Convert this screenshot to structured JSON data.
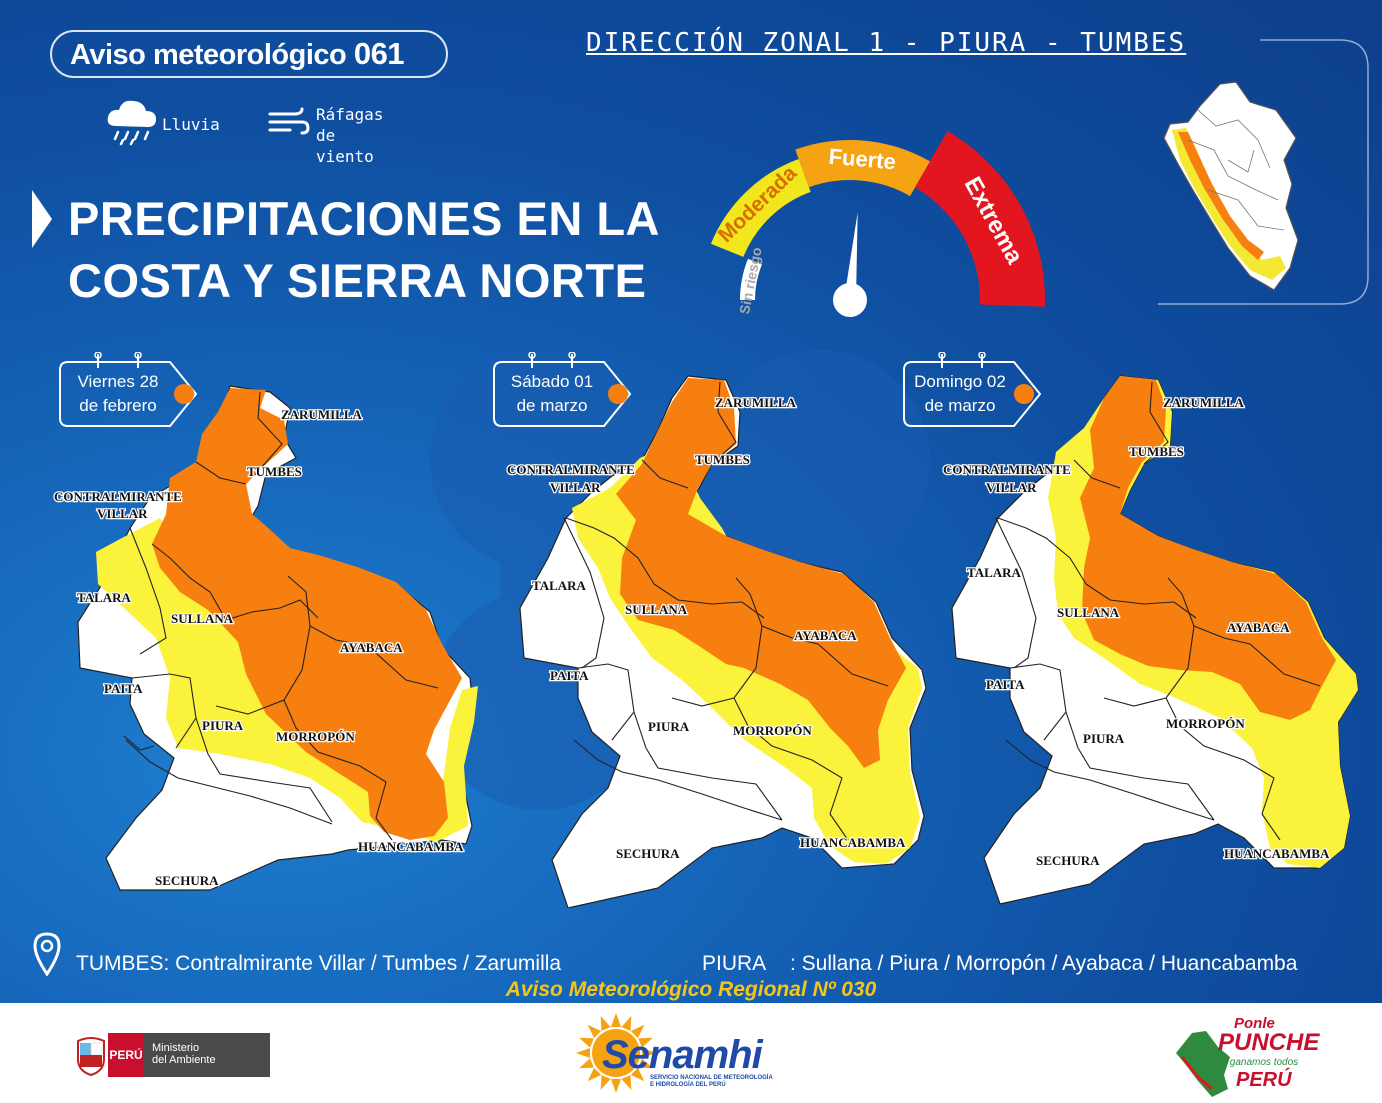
{
  "header": {
    "title": "Aviso meteorológico",
    "number": "061",
    "direction": "DIRECCIÓN ZONAL 1 - PIURA - TUMBES"
  },
  "legend": {
    "rain_label": "Lluvia",
    "wind_line1": "Ráfagas",
    "wind_line2": "de",
    "wind_line3": "viento"
  },
  "headline": {
    "line1": "PRECIPITACIONES EN LA",
    "line2": "COSTA Y SIERRA NORTE"
  },
  "gauge": {
    "levels": [
      "Sin riesgo",
      "Moderada",
      "Fuerte",
      "Extrema"
    ],
    "colors": [
      "#ffffff",
      "#f2e61c",
      "#f6a313",
      "#e3161f"
    ],
    "current_level": "Fuerte"
  },
  "days": [
    {
      "line1": "Viernes 28",
      "line2": "de febrero"
    },
    {
      "line1": "Sábado 01",
      "line2": "de marzo"
    },
    {
      "line1": "Domingo 02",
      "line2": "de marzo"
    }
  ],
  "provinces": {
    "zarumilla": "ZARUMILLA",
    "tumbes": "TUMBES",
    "contralmirante1": "CONTRALMIRANTE",
    "contralmirante2": "VILLAR",
    "talara": "TALARA",
    "sullana": "SULLANA",
    "paita": "PAITA",
    "ayabaca": "AYABACA",
    "piura": "PIURA",
    "morropon": "MORROPÓN",
    "huancabamba": "HUANCABAMBA",
    "sechura": "SECHURA"
  },
  "colors": {
    "alert_orange": "#f77f0f",
    "alert_yellow": "#fbf33b",
    "no_alert": "#ffffff",
    "background": "#1565b9",
    "regional_notice": "#f5c518"
  },
  "footer": {
    "tumbes_list": "TUMBES: Contralmirante Villar / Tumbes / Zarumilla",
    "piura_label": "PIURA",
    "piura_list": ": Sullana / Piura / Morropón / Ayabaca / Huancabamba",
    "regional_notice": "Aviso Meteorológico Regional Nº 030",
    "peru_label": "PERÚ",
    "ministry_line1": "Ministerio",
    "ministry_line2": "del Ambiente",
    "senamhi": "Senamhi",
    "senamhi_sub1": "SERVICIO NACIONAL DE METEOROLOGÍA",
    "senamhi_sub2": "E HIDROLOGÍA DEL PERÚ",
    "campaign_line1": "Ponle",
    "campaign_line2": "PUNCHE",
    "campaign_line3": "y ganamos todos",
    "campaign_line4": "PERÚ"
  }
}
